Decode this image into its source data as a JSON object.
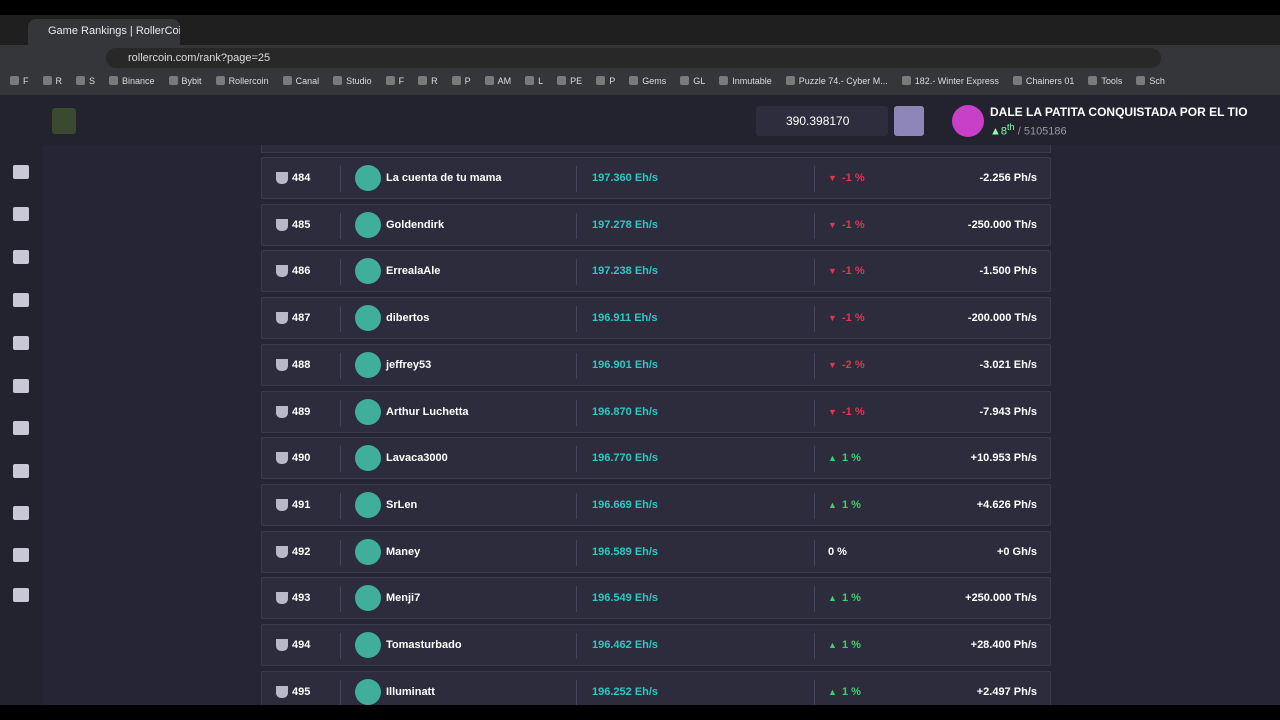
{
  "browser": {
    "tab_title": "Game Rankings | RollerCoin.com",
    "url": "rollercoin.com/rank?page=25",
    "bookmarks": [
      "F",
      "R",
      "S",
      "Binance",
      "Bybit",
      "Rollercoin",
      "Canal",
      "Studio",
      "F",
      "R",
      "P",
      "AM",
      "L",
      "PE",
      "P",
      "Gems",
      "GL",
      "Inmutable",
      "Puzzle 74.- Cyber M...",
      "182.- Winter Express",
      "Chainers 01",
      "Tools",
      "Sch"
    ]
  },
  "header": {
    "balance": "390.398170",
    "user_name": "DALE LA PATITA CONQUISTADA POR EL TIO",
    "rank": "8",
    "rank_suffix": "th",
    "total": "/ 5105186"
  },
  "table": {
    "rows": [
      {
        "rank": 484,
        "name": "La cuenta de tu mama",
        "power": "197.360 Eh/s",
        "change": "-1 %",
        "delta": "-2.256 Ph/s"
      },
      {
        "rank": 485,
        "name": "Goldendirk",
        "power": "197.278 Eh/s",
        "change": "-1 %",
        "delta": "-250.000 Th/s"
      },
      {
        "rank": 486,
        "name": "ErrealaAle",
        "power": "197.238 Eh/s",
        "change": "-1 %",
        "delta": "-1.500 Ph/s"
      },
      {
        "rank": 487,
        "name": "dibertos",
        "power": "196.911 Eh/s",
        "change": "-1 %",
        "delta": "-200.000 Th/s"
      },
      {
        "rank": 488,
        "name": "jeffrey53",
        "power": "196.901 Eh/s",
        "change": "-2 %",
        "delta": "-3.021 Eh/s"
      },
      {
        "rank": 489,
        "name": "Arthur Luchetta",
        "power": "196.870 Eh/s",
        "change": "-1 %",
        "delta": "-7.943 Ph/s"
      },
      {
        "rank": 490,
        "name": "Lavaca3000",
        "power": "196.770 Eh/s",
        "change": "1 %",
        "delta": "+10.953 Ph/s"
      },
      {
        "rank": 491,
        "name": "SrLen",
        "power": "196.669 Eh/s",
        "change": "1 %",
        "delta": "+4.626 Ph/s"
      },
      {
        "rank": 492,
        "name": "Maney",
        "power": "196.589 Eh/s",
        "change": "0 %",
        "delta": "+0 Gh/s"
      },
      {
        "rank": 493,
        "name": "Menji7",
        "power": "196.549 Eh/s",
        "change": "1 %",
        "delta": "+250.000 Th/s"
      },
      {
        "rank": 494,
        "name": "Tomasturbado",
        "power": "196.462 Eh/s",
        "change": "1 %",
        "delta": "+28.400 Ph/s"
      },
      {
        "rank": 495,
        "name": "Illuminatt",
        "power": "196.252 Eh/s",
        "change": "1 %",
        "delta": "+2.497 Ph/s"
      }
    ]
  }
}
